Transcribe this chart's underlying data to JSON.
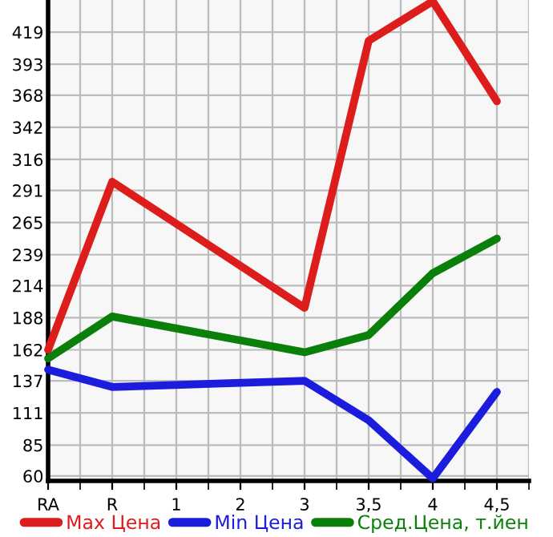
{
  "chart_data": {
    "type": "line",
    "categories": [
      "RA",
      "R",
      "1",
      "2",
      "3",
      "3,5",
      "4",
      "4,5"
    ],
    "series": [
      {
        "name": "Max Цена",
        "color": "#dd1c1c",
        "values": [
          162,
          298,
          null,
          null,
          196,
          412,
          444,
          363
        ]
      },
      {
        "name": "Min Цена",
        "color": "#1c1cdd",
        "values": [
          146,
          132,
          null,
          null,
          137,
          105,
          58,
          128
        ]
      },
      {
        "name": "Сред.Цена, т.йен",
        "color": "#0a800a",
        "values": [
          155,
          189,
          null,
          null,
          160,
          174,
          224,
          252
        ]
      }
    ],
    "ylim": [
      56,
      445
    ],
    "yticks": [
      60,
      85,
      111,
      137,
      162,
      188,
      214,
      239,
      265,
      291,
      316,
      342,
      368,
      393,
      419
    ],
    "grid": true,
    "legend": "bottom",
    "marker": "none",
    "line_style": "solid"
  }
}
